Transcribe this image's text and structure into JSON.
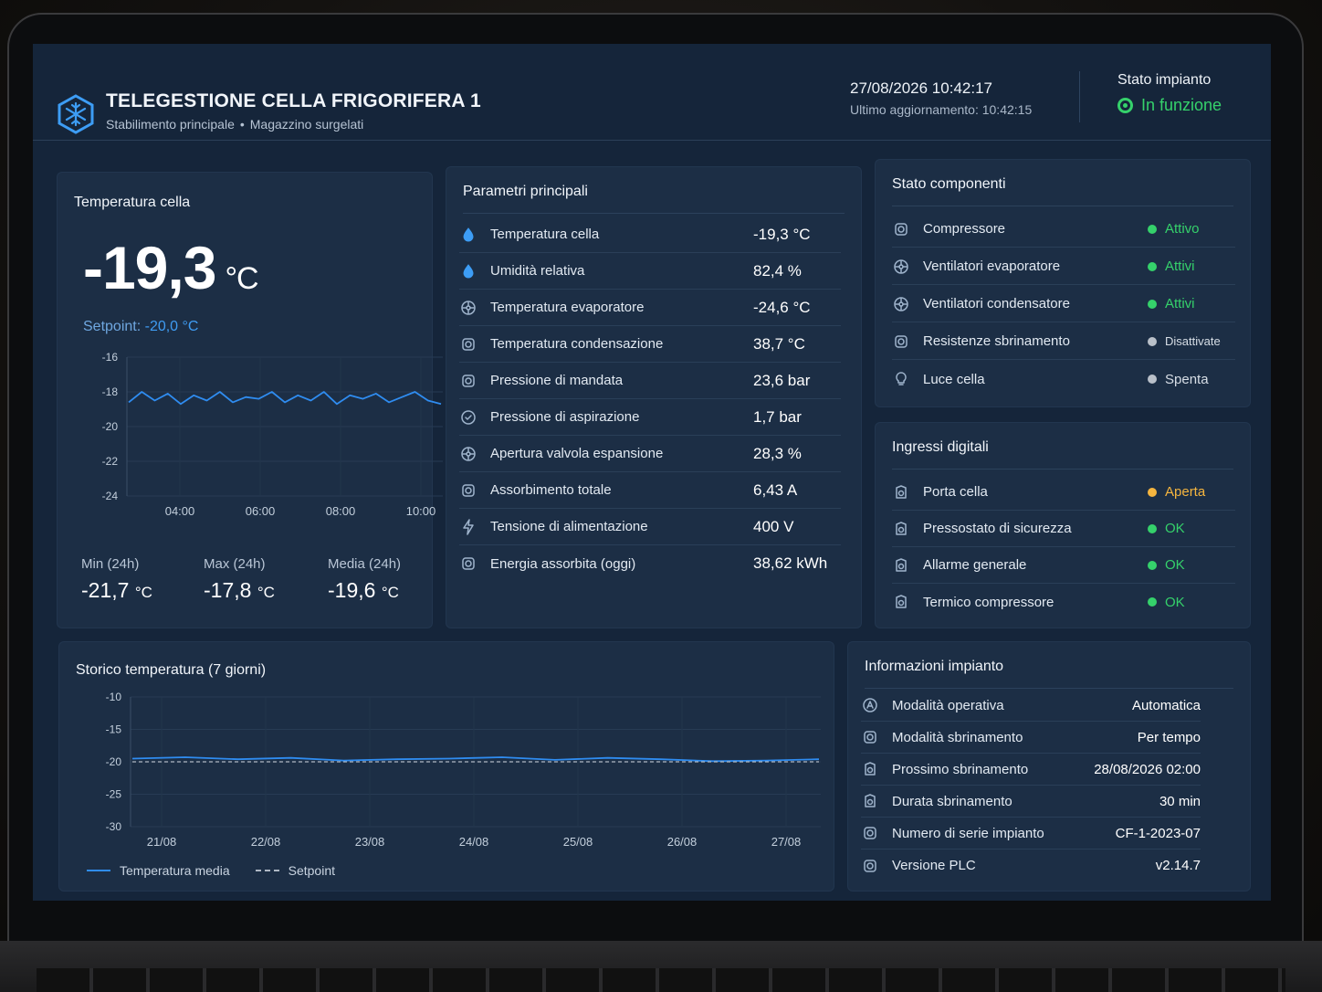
{
  "header": {
    "title": "TELEGESTIONE CELLA FRIGORIFERA 1",
    "subtitle_a": "Stabilimento principale",
    "subtitle_sep": "•",
    "subtitle_b": "Magazzino surgelati",
    "datetime": "27/08/2026 10:42:17",
    "last_update": "Ultimo aggiornamento: 10:42:15",
    "status_label": "Stato impianto",
    "status_value": "In funzione"
  },
  "colors": {
    "accent": "#2f8cf0",
    "ok": "#35d16b",
    "warning": "#f5b53f",
    "off": "#b9c0c9",
    "panel": "#1c2e45",
    "bg": "#15253a"
  },
  "temp_card": {
    "title": "Temperatura cella",
    "value": "-19,3",
    "unit": "°C",
    "setpoint_label": "Setpoint:",
    "setpoint_value": "-20,0 °C",
    "stats": [
      {
        "label": "Min (24h)",
        "value": "-21,7",
        "unit": "°C"
      },
      {
        "label": "Max (24h)",
        "value": "-17,8",
        "unit": "°C"
      },
      {
        "label": "Media (24h)",
        "value": "-19,6",
        "unit": "°C"
      }
    ]
  },
  "params_card": {
    "title": "Parametri principali",
    "rows": [
      {
        "icon": "drop-icon",
        "name": "Temperatura cella",
        "value": "-19,3 °C"
      },
      {
        "icon": "humidity-icon",
        "name": "Umidità relativa",
        "value": "82,4 %"
      },
      {
        "icon": "evaporator-icon",
        "name": "Temperatura evaporatore",
        "value": "-24,6 °C"
      },
      {
        "icon": "condenser-icon",
        "name": "Temperatura condensazione",
        "value": "38,7 °C"
      },
      {
        "icon": "gauge-icon",
        "name": "Pressione di mandata",
        "value": "23,6 bar"
      },
      {
        "icon": "gauge-check-icon",
        "name": "Pressione di aspirazione",
        "value": "1,7 bar"
      },
      {
        "icon": "valve-icon",
        "name": "Apertura valvola espansione",
        "value": "28,3 %"
      },
      {
        "icon": "current-icon",
        "name": "Assorbimento totale",
        "value": "6,43 A"
      },
      {
        "icon": "bolt-icon",
        "name": "Tensione di alimentazione",
        "value": "400 V"
      },
      {
        "icon": "energy-icon",
        "name": "Energia assorbita (oggi)",
        "value": "38,62 kWh"
      }
    ]
  },
  "components_card": {
    "title": "Stato componenti",
    "rows": [
      {
        "icon": "compressor-icon",
        "name": "Compressore",
        "status": "Attivo",
        "color": "#35d16b"
      },
      {
        "icon": "fan-icon",
        "name": "Ventilatori evaporatore",
        "status": "Attivi",
        "color": "#35d16b"
      },
      {
        "icon": "fan-icon",
        "name": "Ventilatori condensatore",
        "status": "Attivi",
        "color": "#35d16b"
      },
      {
        "icon": "heater-icon",
        "name": "Resistenze sbrinamento",
        "status": "Disattivate",
        "color": "#b9c0c9"
      },
      {
        "icon": "bulb-icon",
        "name": "Luce cella",
        "status": "Spenta",
        "color": "#b9c0c9"
      }
    ]
  },
  "inputs_card": {
    "title": "Ingressi digitali",
    "rows": [
      {
        "icon": "door-icon",
        "name": "Porta cella",
        "status": "Aperta",
        "color": "#f5b53f"
      },
      {
        "icon": "pressure-switch-icon",
        "name": "Pressostato di sicurezza",
        "status": "OK",
        "color": "#35d16b"
      },
      {
        "icon": "alarm-icon",
        "name": "Allarme generale",
        "status": "OK",
        "color": "#35d16b"
      },
      {
        "icon": "thermal-icon",
        "name": "Termico compressore",
        "status": "OK",
        "color": "#35d16b"
      }
    ]
  },
  "info_card": {
    "title": "Informazioni impianto",
    "rows": [
      {
        "icon": "mode-icon",
        "name": "Modalità operativa",
        "value": "Automatica"
      },
      {
        "icon": "defrost-icon",
        "name": "Modalità sbrinamento",
        "value": "Per tempo"
      },
      {
        "icon": "calendar-icon",
        "name": "Prossimo sbrinamento",
        "value": "28/08/2026 02:00"
      },
      {
        "icon": "timer-icon",
        "name": "Durata sbrinamento",
        "value": "30 min"
      },
      {
        "icon": "serial-icon",
        "name": "Numero di serie impianto",
        "value": "CF-1-2023-07"
      },
      {
        "icon": "plc-icon",
        "name": "Versione PLC",
        "value": "v2.14.7"
      }
    ]
  },
  "history_card": {
    "title": "Storico temperatura (7 giorni)",
    "legend_series": "Temperatura media",
    "legend_setpoint": "Setpoint"
  },
  "chart_data": [
    {
      "type": "line",
      "ylim": [
        -24,
        -16
      ],
      "yticks": [
        "-16",
        "-18",
        "-20",
        "-22",
        "-24"
      ],
      "xticks": [
        "04:00",
        "06:00",
        "08:00",
        "10:00"
      ],
      "x": [
        "02:40",
        "03:00",
        "03:20",
        "03:40",
        "04:00",
        "04:20",
        "04:40",
        "05:00",
        "05:20",
        "05:40",
        "06:00",
        "06:20",
        "06:40",
        "07:00",
        "07:20",
        "07:40",
        "08:00",
        "08:20",
        "08:40",
        "09:00",
        "09:20",
        "09:40",
        "10:00",
        "10:20",
        "10:40"
      ],
      "series": [
        {
          "values": [
            -18.6,
            -18.0,
            -18.5,
            -18.1,
            -18.7,
            -18.2,
            -18.5,
            -18.0,
            -18.6,
            -18.3,
            -18.4,
            -18.0,
            -18.6,
            -18.2,
            -18.5,
            -18.0,
            -18.7,
            -18.2,
            -18.4,
            -18.1,
            -18.6,
            -18.3,
            -18.0,
            -18.5,
            -18.7
          ]
        }
      ]
    },
    {
      "type": "line",
      "ylim": [
        -30,
        -10
      ],
      "yticks": [
        "-10",
        "-15",
        "-20",
        "-25",
        "-30"
      ],
      "xticks": [
        "21/08",
        "22/08",
        "23/08",
        "24/08",
        "25/08",
        "26/08",
        "27/08"
      ],
      "x": [
        "21/08",
        "21/08 12h",
        "22/08",
        "22/08 12h",
        "23/08",
        "23/08 12h",
        "24/08",
        "24/08 12h",
        "25/08",
        "25/08 12h",
        "26/08",
        "26/08 12h",
        "27/08",
        "27/08 12h"
      ],
      "series": [
        {
          "name": "Temperatura media",
          "values": [
            -19.5,
            -19.3,
            -19.6,
            -19.4,
            -19.8,
            -19.6,
            -19.5,
            -19.3,
            -19.7,
            -19.4,
            -19.6,
            -19.9,
            -19.8,
            -19.6
          ],
          "color": "#2f8cf0"
        },
        {
          "name": "Setpoint",
          "values": [
            -20,
            -20,
            -20,
            -20,
            -20,
            -20,
            -20,
            -20,
            -20,
            -20,
            -20,
            -20,
            -20,
            -20
          ],
          "color": "#aeb8c4",
          "dashed": true
        }
      ]
    }
  ]
}
